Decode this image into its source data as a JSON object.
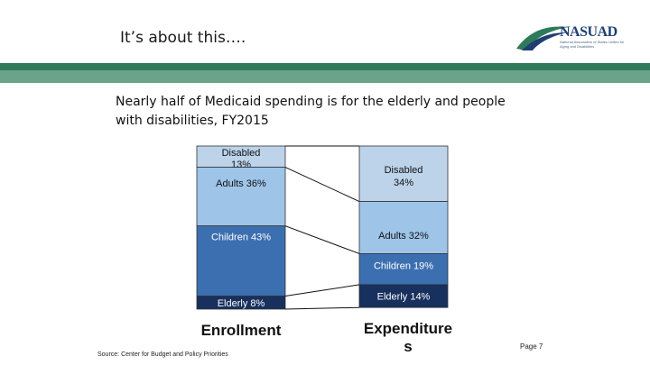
{
  "header": {
    "title": "It’s about this….",
    "logo_text": "NASUAD",
    "logo_subtext": "National Association of States United for Aging and Disabilities"
  },
  "colors": {
    "band_dark": "#2f7a5a",
    "band_light": "#6aa389",
    "segment_light": "#bcd3ea",
    "segment_mid": "#9ec4e8",
    "segment_dark": "#3c6fb0",
    "segment_navy": "#17305e",
    "connector": "#111111"
  },
  "chart_data": {
    "type": "bar",
    "subtype": "stacked-100-percent",
    "title": "Nearly half of Medicaid spending is for the elderly and people with disabilities, FY2015",
    "categories": [
      "Enrollment",
      "Expenditures"
    ],
    "category_display": [
      "Enrollment",
      "Expenditure s"
    ],
    "series": [
      {
        "name": "Disabled",
        "values": [
          13,
          34
        ],
        "labels": [
          "Disabled 13%",
          "Disabled 34%"
        ],
        "color": "#bcd3ea"
      },
      {
        "name": "Adults",
        "values": [
          36,
          32
        ],
        "labels": [
          "Adults 36%",
          "Adults 32%"
        ],
        "color": "#9ec4e8"
      },
      {
        "name": "Children",
        "values": [
          43,
          19
        ],
        "labels": [
          "Children 43%",
          "Children 19%"
        ],
        "color": "#3c6fb0"
      },
      {
        "name": "Elderly",
        "values": [
          8,
          14
        ],
        "labels": [
          "Elderly 8%",
          "Elderly 14%"
        ],
        "color": "#17305e"
      }
    ],
    "xlabel": "",
    "ylabel": "",
    "ylim": [
      0,
      100
    ],
    "legend": "none"
  },
  "footer": {
    "source": "Source: Center for Budget and Policy Priorities",
    "page": "Page 7"
  }
}
